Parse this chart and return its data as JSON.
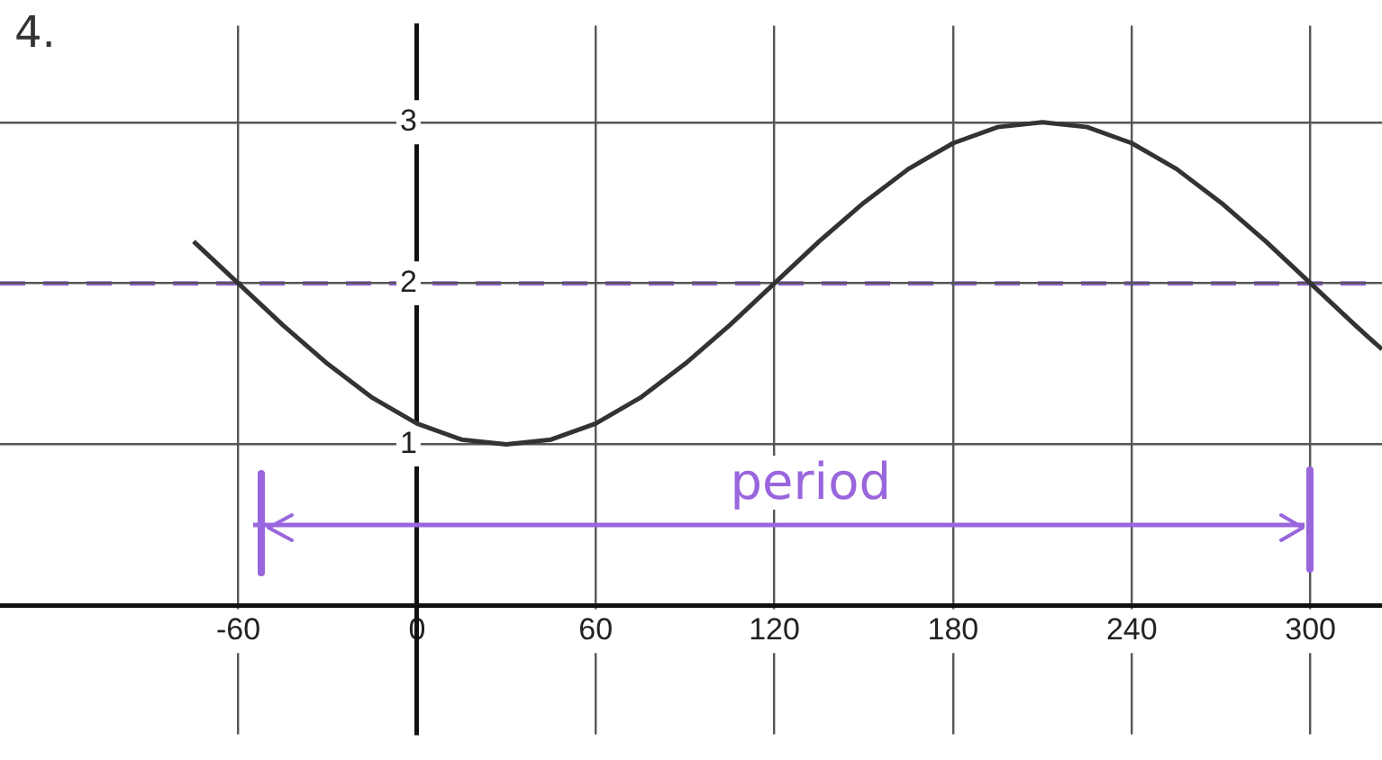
{
  "chart_data": {
    "type": "line",
    "title": "4.",
    "x": [
      -75,
      -60,
      -45,
      -30,
      -15,
      0,
      15,
      30,
      45,
      60,
      75,
      90,
      105,
      120,
      135,
      150,
      165,
      180,
      195,
      210,
      225,
      240,
      255,
      270,
      285,
      300,
      315,
      324
    ],
    "series": [
      {
        "color": "#9966dd",
        "x": [
          -55,
          298
        ],
        "values": [
          0.5,
          0.5
        ]
      },
      {
        "color": "#333333",
        "values": [
          2.26,
          2,
          1.74,
          1.5,
          1.29,
          1.13,
          1.03,
          1,
          1.03,
          1.13,
          1.29,
          1.5,
          1.74,
          2,
          2.26,
          2.5,
          2.71,
          2.87,
          2.97,
          3,
          2.97,
          2.87,
          2.71,
          2.5,
          2.26,
          2,
          1.74,
          1.59
        ]
      }
    ],
    "xlim": [
      -140,
      324
    ],
    "ylim": [
      -0.8,
      3.6
    ],
    "xticks": [
      -60,
      0,
      60,
      120,
      180,
      240,
      300
    ],
    "yticks": [
      1,
      2,
      3
    ],
    "grid": true,
    "legend": false,
    "marker": "none",
    "line_style": "solid",
    "ref_lines": [
      {
        "axis": "y",
        "value": 2,
        "color": "#9966dd",
        "line_style": "dashed"
      }
    ],
    "annotations": [
      {
        "text": "period",
        "x": 120,
        "y": 0.5
      }
    ]
  }
}
